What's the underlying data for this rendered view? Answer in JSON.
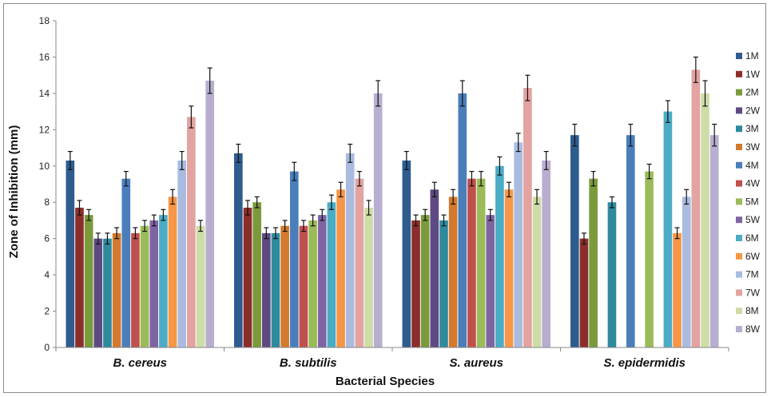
{
  "chart_data": {
    "type": "bar",
    "title": "",
    "xlabel": "Bacterial Species",
    "ylabel": "Zone of Inhibition (mm)",
    "ylim": [
      0,
      18
    ],
    "yticks": [
      "0",
      "2",
      "4",
      "6",
      "8",
      "10",
      "12",
      "14",
      "16",
      "18"
    ],
    "grid": false,
    "error_bars": true,
    "legend_position": "right",
    "categories": [
      "B. cereus",
      "B. subtilis",
      "S. aureus",
      "S. epidermidis"
    ],
    "series": [
      {
        "name": "1M",
        "color": "#2F5C8F",
        "values": [
          10.3,
          10.7,
          10.3,
          11.7
        ],
        "errors": [
          0.5,
          0.5,
          0.5,
          0.6
        ]
      },
      {
        "name": "1W",
        "color": "#8B2E2B",
        "values": [
          7.7,
          7.7,
          7.0,
          6.0
        ],
        "errors": [
          0.4,
          0.4,
          0.3,
          0.3
        ]
      },
      {
        "name": "2M",
        "color": "#7A9A3C",
        "values": [
          7.3,
          8.0,
          7.3,
          9.3
        ],
        "errors": [
          0.3,
          0.3,
          0.3,
          0.4
        ]
      },
      {
        "name": "2W",
        "color": "#5E4A82",
        "values": [
          6.0,
          6.3,
          8.7,
          0
        ],
        "errors": [
          0.3,
          0.3,
          0.4,
          0
        ]
      },
      {
        "name": "3M",
        "color": "#2F8A9E",
        "values": [
          6.0,
          6.3,
          7.0,
          8.0
        ],
        "errors": [
          0.3,
          0.3,
          0.3,
          0.3
        ]
      },
      {
        "name": "3W",
        "color": "#D37A2F",
        "values": [
          6.3,
          6.7,
          8.3,
          0
        ],
        "errors": [
          0.3,
          0.3,
          0.4,
          0
        ]
      },
      {
        "name": "4M",
        "color": "#4A7EBB",
        "values": [
          9.3,
          9.7,
          14.0,
          11.7
        ],
        "errors": [
          0.4,
          0.5,
          0.7,
          0.6
        ]
      },
      {
        "name": "4W",
        "color": "#C0504D",
        "values": [
          6.3,
          6.7,
          9.3,
          0
        ],
        "errors": [
          0.3,
          0.3,
          0.4,
          0
        ]
      },
      {
        "name": "5M",
        "color": "#9BBB59",
        "values": [
          6.7,
          7.0,
          9.3,
          9.7
        ],
        "errors": [
          0.3,
          0.3,
          0.4,
          0.4
        ]
      },
      {
        "name": "5W",
        "color": "#8064A2",
        "values": [
          7.0,
          7.3,
          7.3,
          0
        ],
        "errors": [
          0.3,
          0.3,
          0.3,
          0
        ]
      },
      {
        "name": "6M",
        "color": "#4BACC6",
        "values": [
          7.3,
          8.0,
          10.0,
          13.0
        ],
        "errors": [
          0.3,
          0.4,
          0.5,
          0.6
        ]
      },
      {
        "name": "6W",
        "color": "#F79646",
        "values": [
          8.3,
          8.7,
          8.7,
          6.3
        ],
        "errors": [
          0.4,
          0.4,
          0.4,
          0.3
        ]
      },
      {
        "name": "7M",
        "color": "#A9BCE0",
        "values": [
          10.3,
          10.7,
          11.3,
          8.3
        ],
        "errors": [
          0.5,
          0.5,
          0.5,
          0.4
        ]
      },
      {
        "name": "7W",
        "color": "#E2A3A1",
        "values": [
          12.7,
          9.3,
          14.3,
          15.3
        ],
        "errors": [
          0.6,
          0.4,
          0.7,
          0.7
        ]
      },
      {
        "name": "8M",
        "color": "#CEDCA7",
        "values": [
          6.7,
          7.7,
          8.3,
          14.0
        ],
        "errors": [
          0.3,
          0.4,
          0.4,
          0.7
        ]
      },
      {
        "name": "8W",
        "color": "#B8AED0",
        "values": [
          14.7,
          14.0,
          10.3,
          11.7
        ],
        "errors": [
          0.7,
          0.7,
          0.5,
          0.6
        ]
      }
    ]
  }
}
